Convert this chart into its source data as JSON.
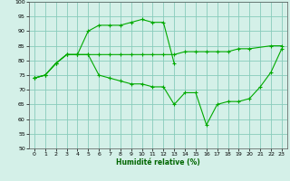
{
  "xlabel": "Humidité relative (%)",
  "bg_color": "#d4f0e8",
  "grid_color": "#88ccbb",
  "line_color": "#00aa00",
  "xlim": [
    -0.5,
    23.5
  ],
  "ylim": [
    50,
    100
  ],
  "xticks": [
    0,
    1,
    2,
    3,
    4,
    5,
    6,
    7,
    8,
    9,
    10,
    11,
    12,
    13,
    14,
    15,
    16,
    17,
    18,
    19,
    20,
    21,
    22,
    23
  ],
  "yticks": [
    50,
    55,
    60,
    65,
    70,
    75,
    80,
    85,
    90,
    95,
    100
  ],
  "s1x": [
    0,
    1,
    2,
    3,
    4,
    5,
    6,
    7,
    8,
    9,
    10,
    11,
    12,
    13
  ],
  "s1y": [
    74,
    75,
    79,
    82,
    82,
    90,
    92,
    92,
    92,
    93,
    94,
    93,
    93,
    79
  ],
  "s2x": [
    0,
    1,
    2,
    3,
    4,
    5,
    6,
    7,
    8,
    9,
    10,
    11,
    12,
    13,
    14,
    15,
    16,
    17,
    18,
    19,
    20,
    22,
    23
  ],
  "s2y": [
    74,
    75,
    79,
    82,
    82,
    82,
    82,
    82,
    82,
    82,
    82,
    82,
    82,
    82,
    83,
    83,
    83,
    83,
    83,
    84,
    84,
    85,
    85
  ],
  "s3x": [
    0,
    1,
    2,
    3,
    4,
    5,
    6,
    7,
    8,
    9,
    10,
    11,
    12,
    13,
    14,
    15,
    16,
    17,
    18,
    19,
    20,
    21,
    22,
    23
  ],
  "s3y": [
    74,
    75,
    79,
    82,
    82,
    82,
    75,
    74,
    73,
    72,
    72,
    71,
    71,
    65,
    69,
    69,
    58,
    65,
    66,
    66,
    67,
    71,
    76,
    84
  ]
}
